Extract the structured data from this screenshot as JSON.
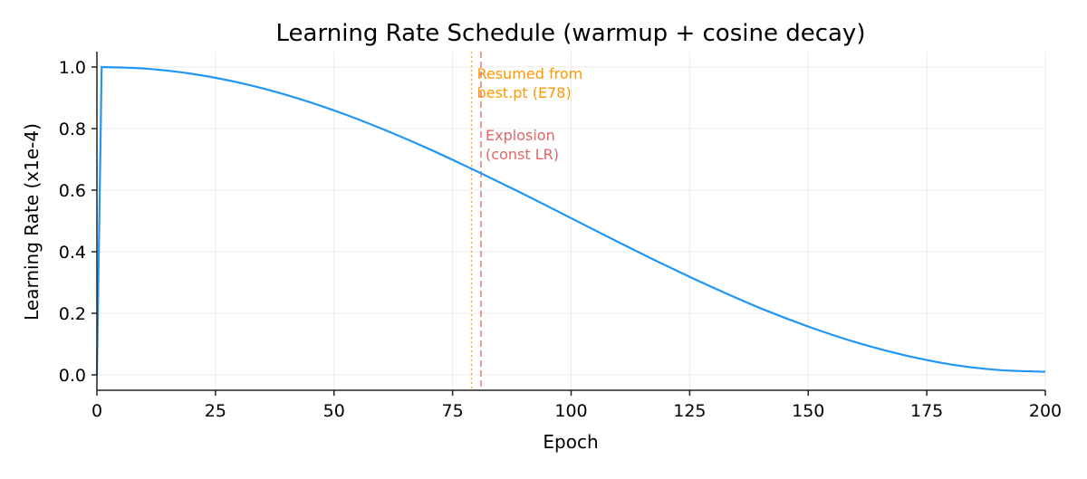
{
  "chart_data": {
    "type": "line",
    "title": "Learning Rate Schedule (warmup + cosine decay)",
    "xlabel": "Epoch",
    "ylabel": "Learning Rate (x1e-4)",
    "xlim": [
      0,
      200
    ],
    "ylim": [
      -0.05,
      1.05
    ],
    "xticks": [
      0,
      25,
      50,
      75,
      100,
      125,
      150,
      175,
      200
    ],
    "yticks": [
      0.0,
      0.2,
      0.4,
      0.6,
      0.8,
      1.0
    ],
    "grid": true,
    "series": [
      {
        "color": "#2196f3",
        "x": [
          0,
          1,
          10,
          20,
          30,
          40,
          50,
          60,
          70,
          80,
          90,
          100,
          110,
          120,
          130,
          140,
          150,
          160,
          170,
          180,
          190,
          200
        ],
        "y": [
          0.0,
          1.0,
          0.995,
          0.978,
          0.949,
          0.909,
          0.859,
          0.8,
          0.734,
          0.662,
          0.587,
          0.509,
          0.431,
          0.355,
          0.283,
          0.216,
          0.157,
          0.106,
          0.065,
          0.034,
          0.016,
          0.01
        ]
      }
    ],
    "vlines": [
      {
        "x": 79,
        "style": "dotted",
        "color": "#ff9800",
        "label_lines": [
          "Resumed from",
          "best.pt (E78)"
        ]
      },
      {
        "x": 81,
        "style": "dashed",
        "color": "#e06666",
        "label_lines": [
          "Explosion",
          "(const LR)"
        ]
      }
    ]
  }
}
